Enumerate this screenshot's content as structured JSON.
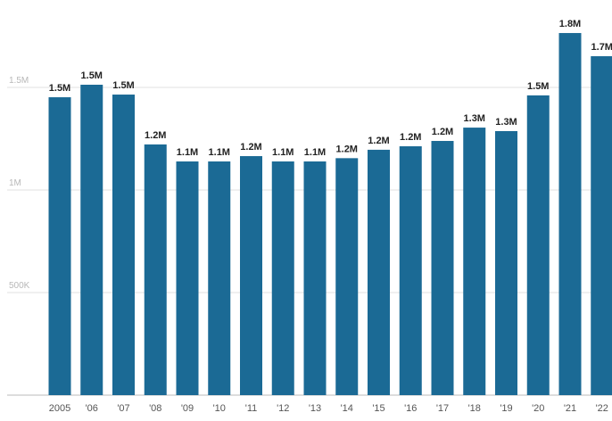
{
  "chart_data": {
    "type": "bar",
    "categories": [
      "2005",
      "'06",
      "'07",
      "'08",
      "'09",
      "'10",
      "'11",
      "'12",
      "'13",
      "'14",
      "'15",
      "'16",
      "'17",
      "'18",
      "'19",
      "'20",
      "'21",
      "'22"
    ],
    "values": [
      1452000,
      1513000,
      1465000,
      1222000,
      1139000,
      1139000,
      1165000,
      1139000,
      1139000,
      1155000,
      1196000,
      1213000,
      1239000,
      1304000,
      1287000,
      1461000,
      1765000,
      1652000
    ],
    "value_labels": [
      "1.5M",
      "1.5M",
      "1.5M",
      "1.2M",
      "1.1M",
      "1.1M",
      "1.2M",
      "1.1M",
      "1.1M",
      "1.2M",
      "1.2M",
      "1.2M",
      "1.2M",
      "1.3M",
      "1.3M",
      "1.5M",
      "1.8M",
      "1.7M"
    ],
    "color": "#1b6a95",
    "ylim": [
      0,
      1926000
    ],
    "yticks": [
      {
        "value": 500000,
        "label": "500K"
      },
      {
        "value": 1000000,
        "label": "1M"
      },
      {
        "value": 1500000,
        "label": "1.5M"
      }
    ],
    "grid": true
  }
}
